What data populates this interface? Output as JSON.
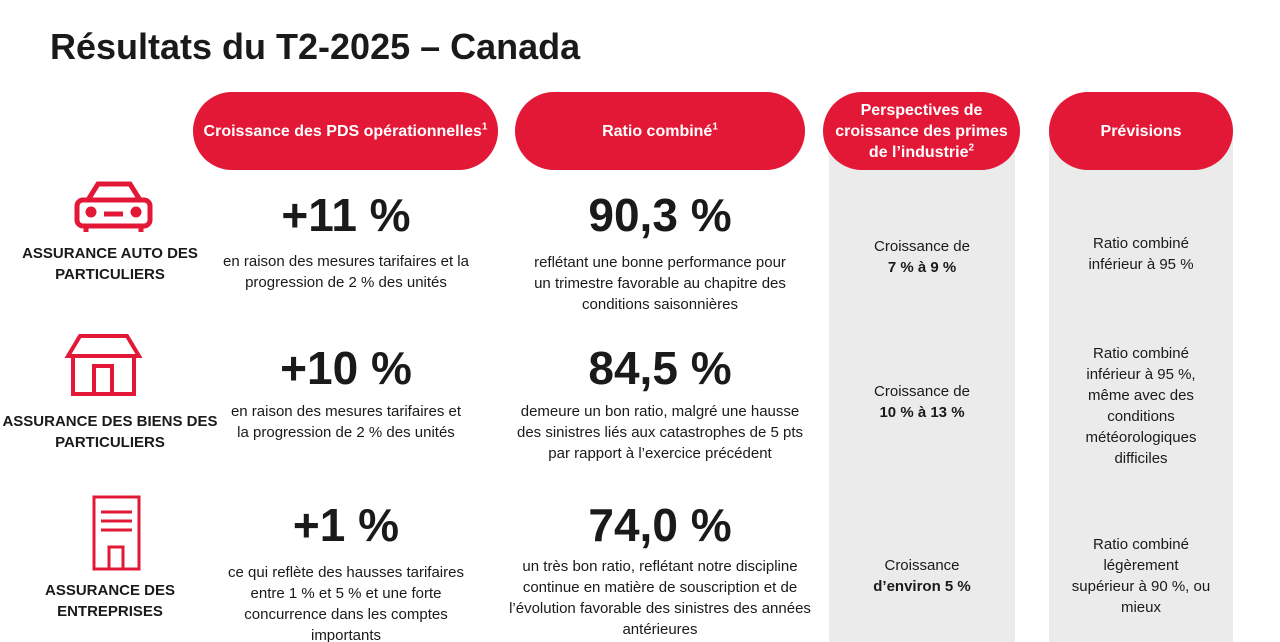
{
  "header": {
    "title": "Résultats du T2-2025 – Canada"
  },
  "columns": [
    {
      "lines": [
        "Croissance des PDS opérationnelles"
      ],
      "note": "1"
    },
    {
      "lines": [
        "Ratio combiné"
      ],
      "note": "1"
    },
    {
      "lines": [
        "Perspectives de",
        "croissance des primes",
        "de l’industrie"
      ],
      "note": "2"
    },
    {
      "lines": [
        "Prévisions"
      ]
    }
  ],
  "rows": [
    {
      "segment": [
        "ASSURANCE AUTO DES",
        "PARTICULIERS"
      ],
      "growth": "+11 %",
      "growth_text": [
        "en raison des mesures tarifaires et la",
        "progression de 2 % des unités"
      ],
      "ratio": "90,3 %",
      "ratio_text": [
        "reflétant une bonne performance pour",
        "un trimestre favorable au chapitre des",
        "conditions saisonnières"
      ],
      "outlook": [
        "Croissance de"
      ],
      "outlook_bold": [
        "7 % à 9 %"
      ],
      "forecast": [
        "Ratio combiné",
        "inférieur à 95 %"
      ]
    },
    {
      "segment": [
        "ASSURANCE DES BIENS DES",
        "PARTICULIERS"
      ],
      "growth": "+10 %",
      "growth_text": [
        "en raison des mesures tarifaires et",
        "la progression de 2 % des unités"
      ],
      "ratio": "84,5 %",
      "ratio_text": [
        "demeure un bon ratio, malgré une hausse",
        "des sinistres liés aux catastrophes de 5 pts",
        "par rapport à l’exercice précédent"
      ],
      "outlook": [
        "Croissance de"
      ],
      "outlook_bold": [
        "10 % à 13 %"
      ],
      "forecast": [
        "Ratio combiné",
        "inférieur à 95 %,",
        "même avec des",
        "conditions",
        "météorologiques",
        "difficiles"
      ]
    },
    {
      "segment": [
        "ASSURANCE DES",
        "ENTREPRISES"
      ],
      "growth": "+1 %",
      "growth_text": [
        "ce qui reflète des hausses tarifaires",
        "entre 1 % et 5 % et une forte",
        "concurrence dans les comptes",
        "importants"
      ],
      "ratio": "74,0 %",
      "ratio_text": [
        "un très bon ratio, reflétant notre discipline",
        "continue en matière de souscription et de",
        "l’évolution favorable des sinistres des années",
        "antérieures"
      ],
      "outlook": [
        "Croissance"
      ],
      "outlook_bold": [
        "d’environ 5 %"
      ],
      "forecast": [
        "Ratio combiné",
        "légèrement",
        "supérieur à 90 %, ou",
        "mieux"
      ]
    }
  ]
}
